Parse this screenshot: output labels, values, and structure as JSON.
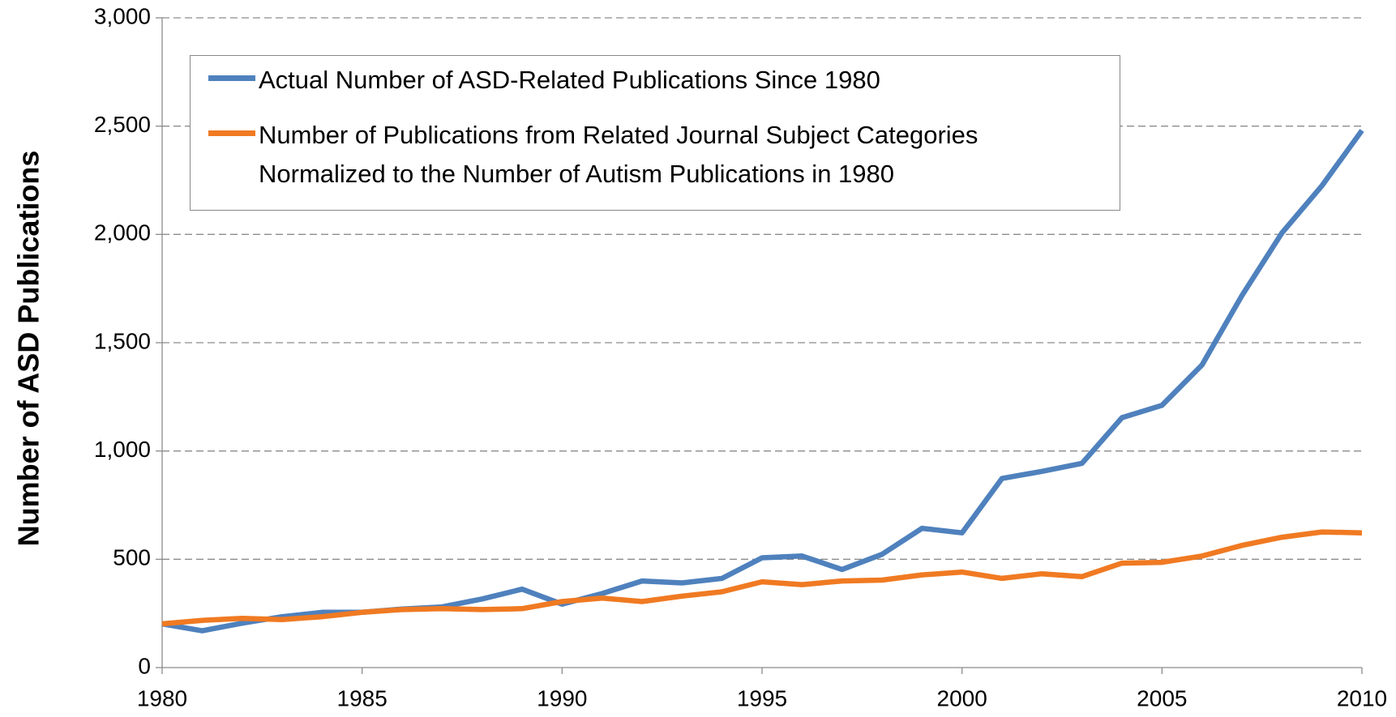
{
  "chart_data": {
    "type": "line",
    "ylabel": "Number of ASD Publications",
    "x": [
      1980,
      1981,
      1982,
      1983,
      1984,
      1985,
      1986,
      1987,
      1988,
      1989,
      1990,
      1991,
      1992,
      1993,
      1994,
      1995,
      1996,
      1997,
      1998,
      1999,
      2000,
      2001,
      2002,
      2003,
      2004,
      2005,
      2006,
      2007,
      2008,
      2009,
      2010
    ],
    "series": [
      {
        "name": "Actual Number of ASD-Related Publications Since 1980",
        "color": "#4f81bd",
        "values": [
          202,
          170,
          205,
          235,
          255,
          255,
          270,
          280,
          317,
          362,
          293,
          342,
          400,
          391,
          412,
          507,
          515,
          453,
          523,
          643,
          622,
          873,
          906,
          943,
          1154,
          1211,
          1397,
          1718,
          2007,
          2225,
          2480
        ]
      },
      {
        "name": "Number of Publications from Related Journal Subject Categories Normalized to the Number of Autism Publications in 1980",
        "color": "#f07a22",
        "values": [
          202,
          218,
          227,
          222,
          235,
          255,
          268,
          272,
          268,
          272,
          305,
          321,
          305,
          330,
          350,
          396,
          383,
          400,
          404,
          428,
          441,
          412,
          433,
          420,
          482,
          486,
          515,
          564,
          602,
          626,
          622
        ]
      }
    ],
    "xlim": [
      1980,
      2010
    ],
    "xticks": [
      1980,
      1985,
      1990,
      1995,
      2000,
      2005,
      2010
    ],
    "ylim": [
      0,
      3000
    ],
    "yticks": [
      0,
      500,
      {
        "value": 1000,
        "label": "1,000"
      },
      {
        "value": 1500,
        "label": "1,500"
      },
      {
        "value": 2000,
        "label": "2,000"
      },
      {
        "value": 2500,
        "label": "2,500"
      },
      {
        "value": 3000,
        "label": "3,000"
      }
    ],
    "grid": true,
    "legend": "upper left"
  }
}
